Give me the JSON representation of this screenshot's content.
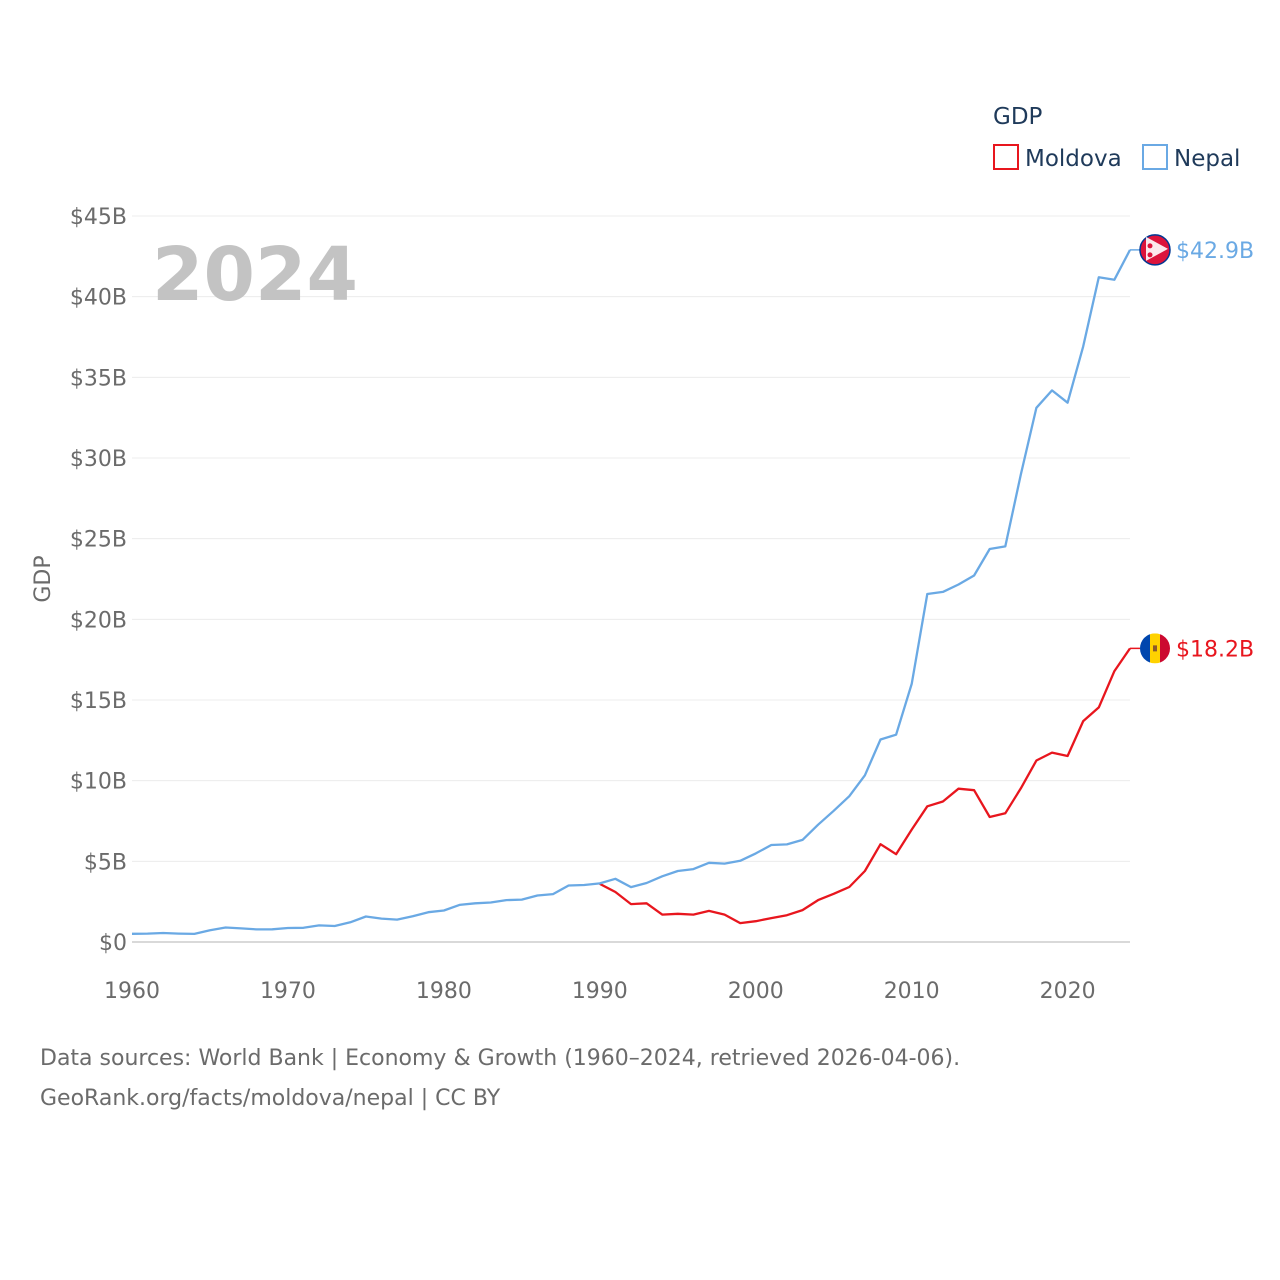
{
  "chart_data": {
    "type": "line",
    "title": "GDP",
    "ylabel": "GDP",
    "xlabel": "",
    "year_label": "2024",
    "xlim": [
      1960,
      2024
    ],
    "ylim": [
      0,
      45
    ],
    "x_ticks": [
      1960,
      1970,
      1980,
      1990,
      2000,
      2010,
      2020
    ],
    "y_ticks": [
      {
        "value": 0,
        "label": "$0"
      },
      {
        "value": 5,
        "label": "$5B"
      },
      {
        "value": 10,
        "label": "$10B"
      },
      {
        "value": 15,
        "label": "$15B"
      },
      {
        "value": 20,
        "label": "$20B"
      },
      {
        "value": 25,
        "label": "$25B"
      },
      {
        "value": 30,
        "label": "$30B"
      },
      {
        "value": 35,
        "label": "$35B"
      },
      {
        "value": 40,
        "label": "$40B"
      },
      {
        "value": 45,
        "label": "$45B"
      }
    ],
    "grid": true,
    "legend_placement": "top-right",
    "series": [
      {
        "name": "Moldova",
        "color": "#e8161e",
        "end_label": "$18.2B",
        "flag": "moldova-flag-icon",
        "x": [
          1990,
          1991,
          1992,
          1993,
          1994,
          1995,
          1996,
          1997,
          1998,
          1999,
          2000,
          2001,
          2002,
          2003,
          2004,
          2005,
          2006,
          2007,
          2008,
          2009,
          2010,
          2011,
          2012,
          2013,
          2014,
          2015,
          2016,
          2017,
          2018,
          2019,
          2020,
          2021,
          2022,
          2023,
          2024
        ],
        "values": [
          3.6,
          3.1,
          2.35,
          2.4,
          1.7,
          1.75,
          1.7,
          1.93,
          1.7,
          1.17,
          1.29,
          1.48,
          1.66,
          1.98,
          2.6,
          2.99,
          3.41,
          4.4,
          6.06,
          5.44,
          6.97,
          8.41,
          8.71,
          9.5,
          9.41,
          7.75,
          7.98,
          9.52,
          11.25,
          11.74,
          11.53,
          13.69,
          14.54,
          16.79,
          18.2
        ]
      },
      {
        "name": "Nepal",
        "color": "#6aa9e4",
        "end_label": "$42.9B",
        "flag": "nepal-flag-icon",
        "x": [
          1960,
          1961,
          1962,
          1963,
          1964,
          1965,
          1966,
          1967,
          1968,
          1969,
          1970,
          1971,
          1972,
          1973,
          1974,
          1975,
          1976,
          1977,
          1978,
          1979,
          1980,
          1981,
          1982,
          1983,
          1984,
          1985,
          1986,
          1987,
          1988,
          1989,
          1990,
          1991,
          1992,
          1993,
          1994,
          1995,
          1996,
          1997,
          1998,
          1999,
          2000,
          2001,
          2002,
          2003,
          2004,
          2005,
          2006,
          2007,
          2008,
          2009,
          2010,
          2011,
          2012,
          2013,
          2014,
          2015,
          2016,
          2017,
          2018,
          2019,
          2020,
          2021,
          2022,
          2023,
          2024
        ],
        "values": [
          0.51,
          0.52,
          0.56,
          0.52,
          0.5,
          0.73,
          0.9,
          0.84,
          0.78,
          0.79,
          0.87,
          0.88,
          1.03,
          0.99,
          1.22,
          1.58,
          1.45,
          1.39,
          1.6,
          1.85,
          1.95,
          2.3,
          2.4,
          2.45,
          2.6,
          2.63,
          2.88,
          2.97,
          3.5,
          3.53,
          3.63,
          3.92,
          3.4,
          3.66,
          4.07,
          4.4,
          4.52,
          4.91,
          4.86,
          5.03,
          5.49,
          6.01,
          6.05,
          6.33,
          7.27,
          8.13,
          9.04,
          10.33,
          12.55,
          12.85,
          16.0,
          21.57,
          21.7,
          22.16,
          22.72,
          24.36,
          24.52,
          28.97,
          33.11,
          34.19,
          33.43,
          36.92,
          41.2,
          41.05,
          42.9
        ]
      }
    ]
  },
  "footer": {
    "line1": "Data sources: World Bank | Economy & Growth (1960–2024, retrieved 2026-04-06).",
    "line2": "GeoRank.org/facts/moldova/nepal | CC BY"
  }
}
